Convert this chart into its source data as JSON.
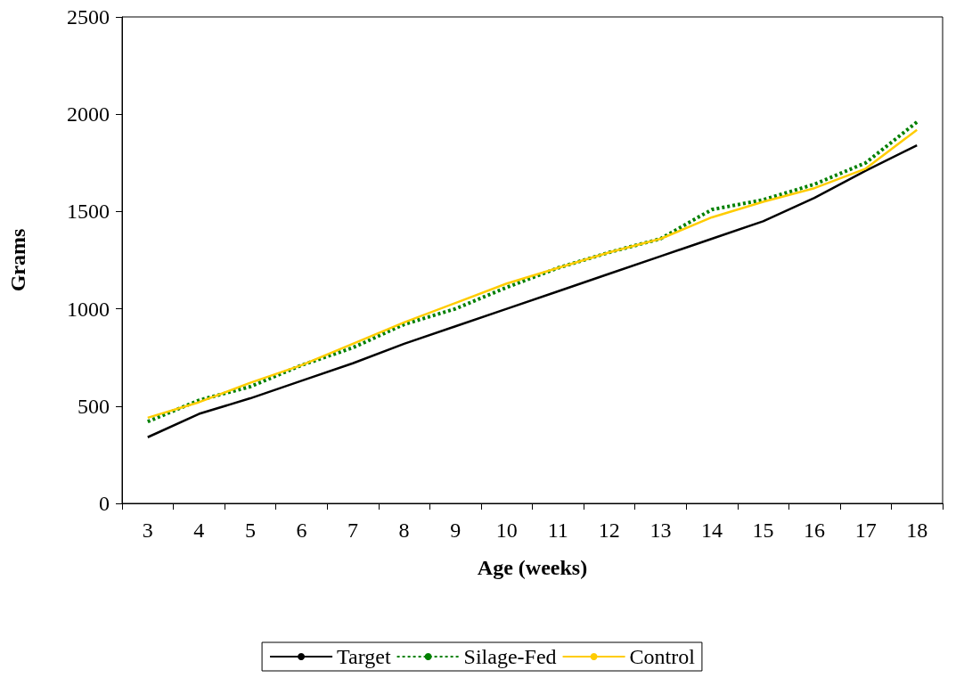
{
  "chart_data": {
    "type": "line",
    "xlabel": "Age (weeks)",
    "ylabel": "Grams",
    "categories": [
      "3",
      "4",
      "5",
      "6",
      "7",
      "8",
      "9",
      "10",
      "11",
      "12",
      "13",
      "14",
      "15",
      "16",
      "17",
      "18"
    ],
    "series": [
      {
        "name": "Target",
        "color": "#000000",
        "line_style": "solid",
        "values": [
          340,
          460,
          540,
          630,
          720,
          820,
          910,
          1000,
          1090,
          1180,
          1270,
          1360,
          1450,
          1570,
          1710,
          1840
        ]
      },
      {
        "name": "Silage-Fed",
        "color": "#008000",
        "line_style": "dashed",
        "values": [
          420,
          530,
          600,
          710,
          800,
          920,
          1000,
          1110,
          1210,
          1290,
          1360,
          1510,
          1560,
          1640,
          1750,
          1960
        ]
      },
      {
        "name": "Control",
        "color": "#ffcc00",
        "line_style": "solid",
        "values": [
          440,
          520,
          620,
          710,
          820,
          930,
          1030,
          1130,
          1210,
          1290,
          1360,
          1470,
          1550,
          1620,
          1720,
          1920
        ]
      }
    ],
    "ylim": [
      0,
      2500
    ],
    "yticks": [
      0,
      500,
      1000,
      1500,
      2000,
      2500
    ],
    "grid": false,
    "legend": "bottom",
    "marker": "none"
  }
}
